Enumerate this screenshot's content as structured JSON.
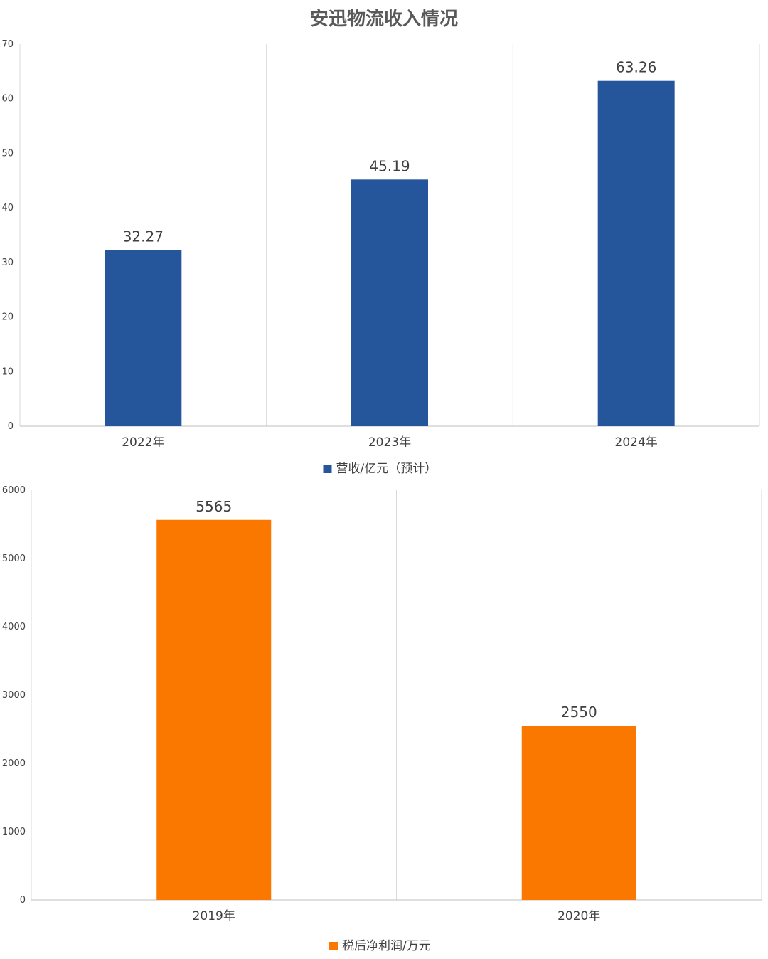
{
  "page": {
    "title": "安迅物流收入情况"
  },
  "chart_data": [
    {
      "type": "bar",
      "title": "安迅物流收入情况",
      "categories": [
        "2022年",
        "2023年",
        "2024年"
      ],
      "series": [
        {
          "name": "营收/亿元（预计）",
          "values": [
            32.27,
            45.19,
            63.26
          ],
          "color": "#25559B"
        }
      ],
      "data_labels": [
        "32.27",
        "45.19",
        "63.26"
      ],
      "ylim": [
        0,
        70
      ],
      "yticks": [
        0,
        10,
        20,
        30,
        40,
        50,
        60,
        70
      ],
      "ytick_labels": [
        "0",
        "10",
        "20",
        "30",
        "40",
        "50",
        "60",
        "70"
      ],
      "xlabel": "",
      "ylabel": "",
      "grid": "vertical separators between categories",
      "legend": "bottom-center"
    },
    {
      "type": "bar",
      "title": "",
      "categories": [
        "2019年",
        "2020年"
      ],
      "series": [
        {
          "name": "税后净利润/万元",
          "values": [
            5565,
            2550
          ],
          "color": "#FA7700"
        }
      ],
      "data_labels": [
        "5565",
        "2550"
      ],
      "ylim": [
        0,
        6000
      ],
      "yticks": [
        0,
        1000,
        2000,
        3000,
        4000,
        5000,
        6000
      ],
      "ytick_labels": [
        "0",
        "1000",
        "2000",
        "3000",
        "4000",
        "5000",
        "6000"
      ],
      "xlabel": "",
      "ylabel": "",
      "grid": "vertical separators between categories",
      "legend": "bottom-center"
    }
  ]
}
